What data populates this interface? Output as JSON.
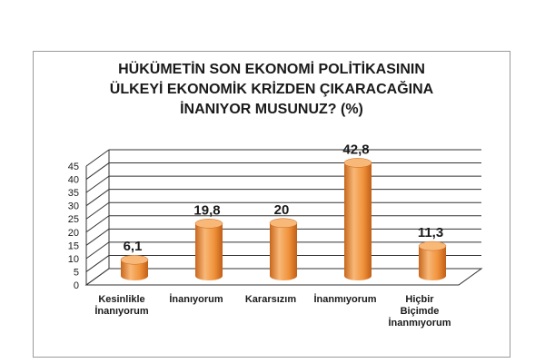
{
  "chart_data": {
    "type": "bar",
    "title_lines": [
      "HÜKÜMETİN SON EKONOMİ POLİTİKASININ",
      "ÜLKEYİ EKONOMİK KRİZDEN ÇIKARACAĞINA",
      "İNANIYOR MUSUNUZ? (%)"
    ],
    "categories": [
      [
        "Kesinlikle",
        "İnanıyorum"
      ],
      [
        "İnanıyorum"
      ],
      [
        "Kararsızım"
      ],
      [
        "İnanmıyorum"
      ],
      [
        "Hiçbir",
        "Biçimde",
        "İnanmıyorum"
      ]
    ],
    "values": [
      6.1,
      19.8,
      20,
      42.8,
      11.3
    ],
    "value_labels": [
      "6,1",
      "19,8",
      "20",
      "42,8",
      "11,3"
    ],
    "yticks": [
      "0",
      "5",
      "10",
      "15",
      "20",
      "25",
      "30",
      "35",
      "40",
      "45"
    ],
    "ylim": [
      0,
      45
    ],
    "grid": true,
    "bar_color": "#f0923a",
    "bar_color_dark": "#c8661c",
    "bar_color_light": "#f8b878"
  }
}
